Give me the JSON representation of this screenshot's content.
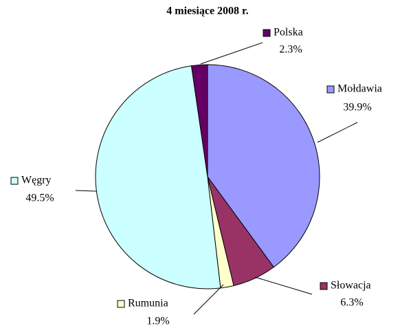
{
  "chart_data": {
    "type": "pie",
    "title": "4 miesiące 2008 r.",
    "categories": [
      "Mołdawia",
      "Słowacja",
      "Rumunia",
      "Węgry",
      "Polska"
    ],
    "values": [
      39.9,
      6.3,
      1.9,
      49.5,
      2.3
    ],
    "value_labels": [
      "39.9%",
      "6.3%",
      "1.9%",
      "49.5%",
      "2.3%"
    ],
    "colors": [
      "#9999ff",
      "#993366",
      "#ffffcc",
      "#ccffff",
      "#660066"
    ]
  }
}
